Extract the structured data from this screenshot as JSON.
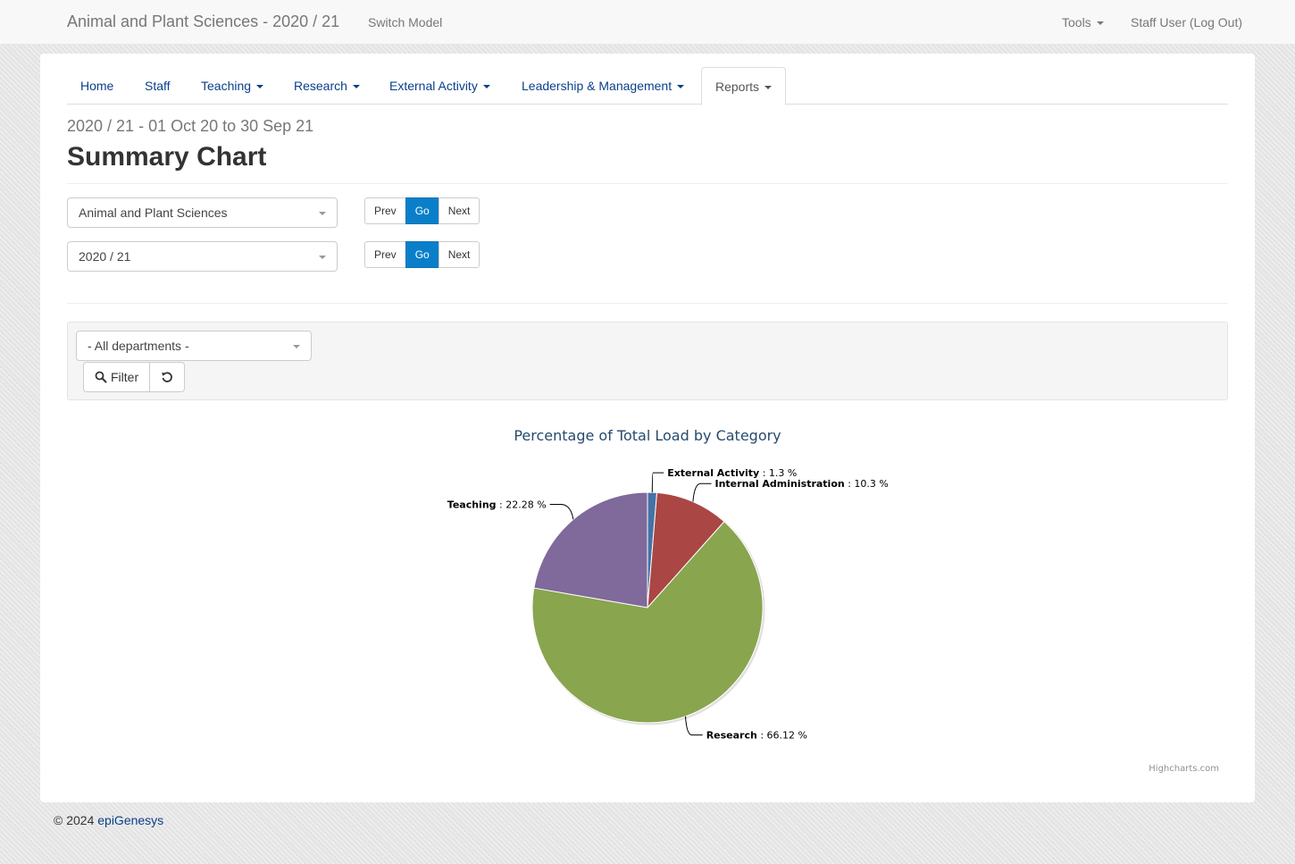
{
  "navbar": {
    "brand": "Animal and Plant Sciences - 2020 / 21",
    "switch_model": "Switch Model",
    "tools": "Tools",
    "user": "Staff User (Log Out)"
  },
  "tabs": [
    {
      "label": "Home",
      "has_caret": false
    },
    {
      "label": "Staff",
      "has_caret": false
    },
    {
      "label": "Teaching",
      "has_caret": true
    },
    {
      "label": "Research",
      "has_caret": true
    },
    {
      "label": "External Activity",
      "has_caret": true
    },
    {
      "label": "Leadership & Management",
      "has_caret": true
    },
    {
      "label": "Reports",
      "has_caret": true,
      "active": true
    }
  ],
  "page": {
    "subtitle": "2020 / 21 - 01 Oct 20 to 30 Sep 21",
    "title": "Summary Chart"
  },
  "selectors": {
    "department": {
      "value": "Animal and Plant Sciences",
      "prev": "Prev",
      "go": "Go",
      "next": "Next"
    },
    "year": {
      "value": "2020 / 21",
      "prev": "Prev",
      "go": "Go",
      "next": "Next"
    }
  },
  "filter": {
    "department_select": "- All departments -",
    "filter_label": "Filter",
    "filter_icon": "search-icon",
    "reset_icon": "undo-icon"
  },
  "chart_data": {
    "type": "pie",
    "title": "Percentage of Total Load by Category",
    "slices": [
      {
        "name": "External Activity",
        "value": 1.3,
        "label": "1.3 %",
        "color": "#4572a7"
      },
      {
        "name": "Internal Administration",
        "value": 10.3,
        "label": "10.3 %",
        "color": "#aa4643"
      },
      {
        "name": "Research",
        "value": 66.12,
        "label": "66.12 %",
        "color": "#89a54e"
      },
      {
        "name": "Teaching",
        "value": 22.28,
        "label": "22.28 %",
        "color": "#80699b"
      }
    ],
    "credits": "Highcharts.com"
  },
  "footer": {
    "copyright": "© 2024",
    "link": "epiGenesys"
  }
}
